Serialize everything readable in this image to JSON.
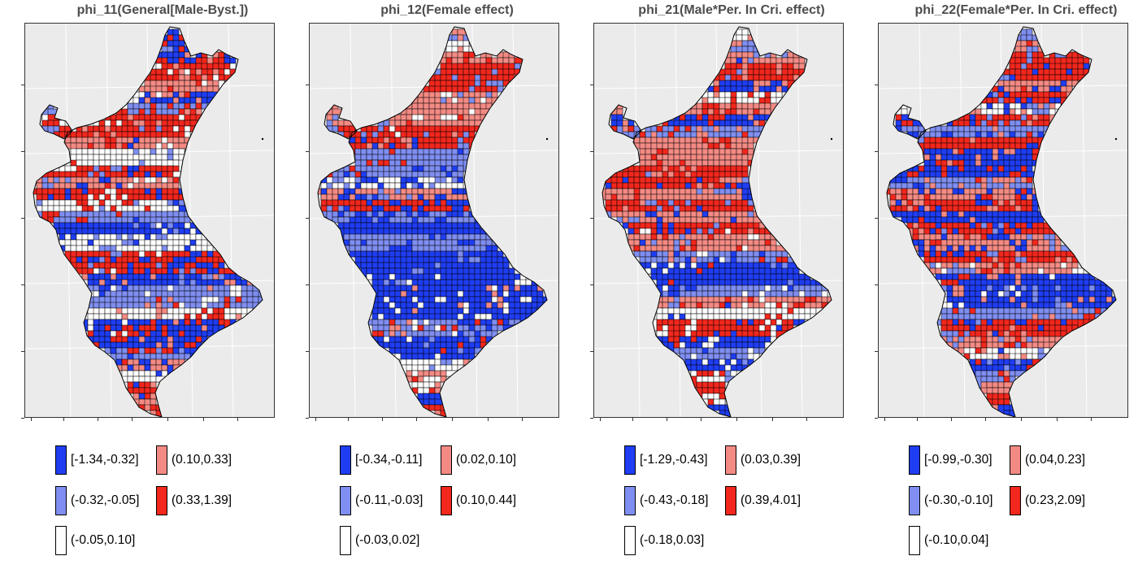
{
  "panels": [
    {
      "title": "phi_11(General[Male-Byst.])",
      "legend": [
        {
          "label": "[-1.34,-0.32]",
          "color": "#1f3df2"
        },
        {
          "label": "(-0.32,-0.05]",
          "color": "#7f8ef0"
        },
        {
          "label": "(-0.05,0.10]",
          "color": "#ffffff"
        },
        {
          "label": "(0.10,0.33]",
          "color": "#f48a84"
        },
        {
          "label": "(0.33,1.39]",
          "color": "#f2271d"
        }
      ],
      "region_classes": [
        0,
        0,
        0,
        4,
        3,
        0,
        1,
        4,
        4,
        3,
        2,
        4,
        3,
        4,
        2,
        1,
        0,
        2,
        4,
        4,
        0,
        1,
        1,
        2,
        0,
        0,
        1,
        3,
        2,
        4,
        3,
        4
      ]
    },
    {
      "title": "phi_12(Female effect)",
      "legend": [
        {
          "label": "[-0.34,-0.11]",
          "color": "#1f3df2"
        },
        {
          "label": "(-0.11,-0.03]",
          "color": "#7f8ef0"
        },
        {
          "label": "(-0.03,0.02]",
          "color": "#ffffff"
        },
        {
          "label": "(0.02,0.10]",
          "color": "#f48a84"
        },
        {
          "label": "(0.10,0.44]",
          "color": "#f2271d"
        }
      ],
      "region_classes": [
        1,
        2,
        3,
        4,
        4,
        3,
        3,
        3,
        4,
        4,
        1,
        1,
        2,
        3,
        4,
        1,
        0,
        1,
        0,
        0,
        0,
        0,
        0,
        0,
        1,
        0,
        0,
        2,
        3,
        2,
        0,
        4
      ]
    },
    {
      "title": "phi_21(Male*Per. In Cri. effect)",
      "legend": [
        {
          "label": "[-1.29,-0.43]",
          "color": "#1f3df2"
        },
        {
          "label": "(-0.43,-0.18]",
          "color": "#7f8ef0"
        },
        {
          "label": "(-0.18,0.03]",
          "color": "#ffffff"
        },
        {
          "label": "(0.03,0.39]",
          "color": "#f48a84"
        },
        {
          "label": "(0.39,4.01]",
          "color": "#f2271d"
        }
      ],
      "region_classes": [
        2,
        1,
        3,
        4,
        0,
        2,
        3,
        0,
        1,
        3,
        3,
        4,
        4,
        3,
        4,
        3,
        4,
        3,
        1,
        0,
        0,
        1,
        3,
        2,
        4,
        0,
        1,
        0,
        2,
        4,
        2,
        0
      ]
    },
    {
      "title": "phi_22(Female*Per. In Cri. effect)",
      "legend": [
        {
          "label": "[-0.99,-0.30]",
          "color": "#1f3df2"
        },
        {
          "label": "(-0.30,-0.10]",
          "color": "#7f8ef0"
        },
        {
          "label": "(-0.10,0.04]",
          "color": "#ffffff"
        },
        {
          "label": "(0.04,0.23]",
          "color": "#f48a84"
        },
        {
          "label": "(0.23,2.09]",
          "color": "#f2271d"
        }
      ],
      "region_classes": [
        1,
        3,
        4,
        4,
        3,
        4,
        2,
        4,
        1,
        4,
        0,
        0,
        1,
        3,
        4,
        0,
        4,
        3,
        4,
        3,
        0,
        0,
        0,
        1,
        4,
        3,
        2,
        0,
        1,
        3,
        4,
        0
      ]
    }
  ]
}
